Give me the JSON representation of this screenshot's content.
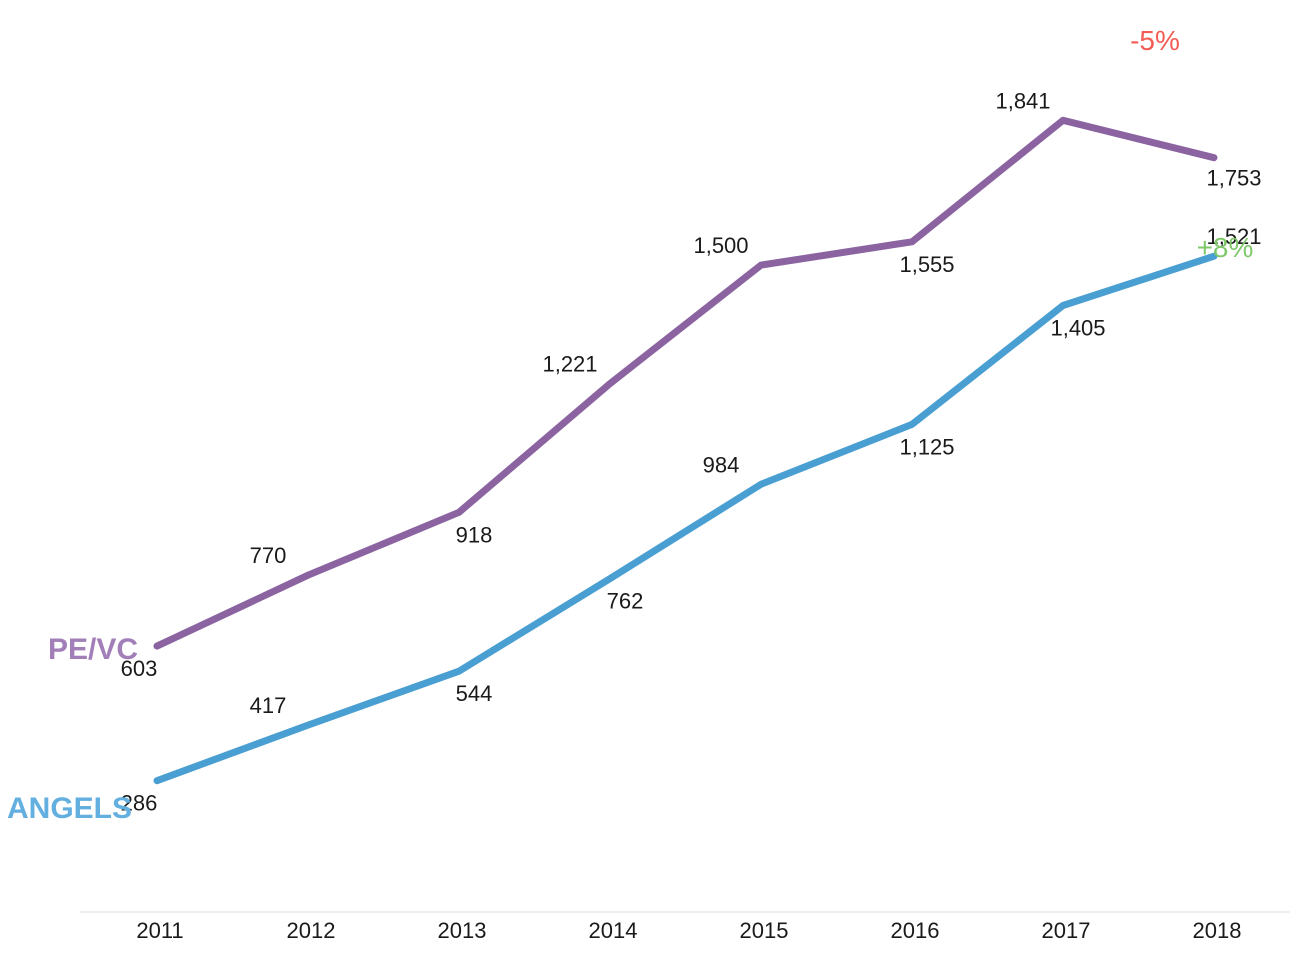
{
  "chart_data": {
    "type": "line",
    "categories": [
      "2011",
      "2012",
      "2013",
      "2014",
      "2015",
      "2016",
      "2017",
      "2018"
    ],
    "series": [
      {
        "name": "PE/VC",
        "color": "#8b63a1",
        "label_color": "#a27fb9",
        "values": [
          603,
          770,
          918,
          1221,
          1500,
          1555,
          1841,
          1753
        ],
        "value_labels": [
          "603",
          "770",
          "918",
          "1,221",
          "1,500",
          "1,555",
          "1,841",
          "1,753"
        ],
        "label_side": [
          "below",
          "above",
          "below",
          "above",
          "above",
          "below",
          "above",
          "below"
        ],
        "change_label": "-5%",
        "change_color": "#f25c54"
      },
      {
        "name": "ANGELS",
        "color": "#4a9fd2",
        "label_color": "#62afe0",
        "values": [
          286,
          417,
          544,
          762,
          984,
          1125,
          1405,
          1521
        ],
        "value_labels": [
          "286",
          "417",
          "544",
          "762",
          "984",
          "1,125",
          "1,405",
          "1,521"
        ],
        "label_side": [
          "below",
          "above",
          "below",
          "below",
          "above",
          "below",
          "below",
          "above"
        ],
        "change_label": "+8%",
        "change_color": "#7ec86a"
      }
    ],
    "title": "",
    "xlabel": "",
    "ylabel": "",
    "ylim": [
      0,
      1900
    ],
    "grid": false,
    "legend": "inline-left"
  }
}
